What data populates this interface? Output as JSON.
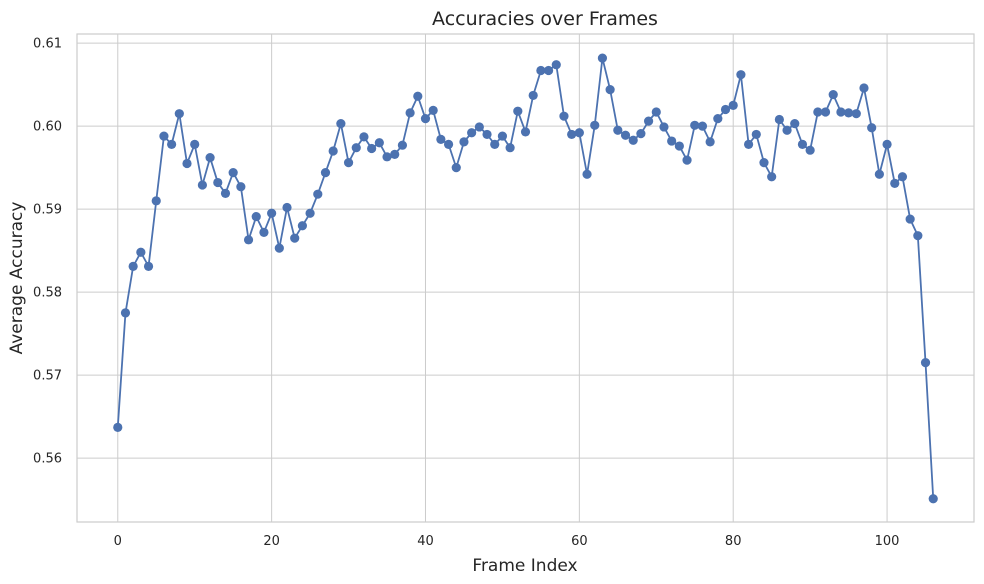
{
  "chart_data": {
    "type": "line",
    "title": "Accuracies over Frames",
    "xlabel": "Frame Index",
    "ylabel": "Average Accuracy",
    "xlim": [
      -5.3,
      111.3
    ],
    "ylim": [
      0.5523,
      0.6111
    ],
    "xticks": [
      0,
      20,
      40,
      60,
      80,
      100
    ],
    "yticks": [
      0.56,
      0.57,
      0.58,
      0.59,
      0.6,
      0.61
    ],
    "ytick_labels": [
      "0.56",
      "0.57",
      "0.58",
      "0.59",
      "0.60",
      "0.61"
    ],
    "grid": true,
    "marker": "circle",
    "color": "#4c72b0",
    "series": [
      {
        "x": [
          0,
          1,
          2,
          3,
          4,
          5,
          6,
          7,
          8,
          9,
          10,
          11,
          12,
          13,
          14,
          15,
          16,
          17,
          18,
          19,
          20,
          21,
          22,
          23,
          24,
          25,
          26,
          27,
          28,
          29,
          30,
          31,
          32,
          33,
          34,
          35,
          36,
          37,
          38,
          39,
          40,
          41,
          42,
          43,
          44,
          45,
          46,
          47,
          48,
          49,
          50,
          51,
          52,
          53,
          54,
          55,
          56,
          57,
          58,
          59,
          60,
          61,
          62,
          63,
          64,
          65,
          66,
          67,
          68,
          69,
          70,
          71,
          72,
          73,
          74,
          75,
          76,
          77,
          78,
          79,
          80,
          81,
          82,
          83,
          84,
          85,
          86,
          87,
          88,
          89,
          90,
          91,
          92,
          93,
          94,
          95,
          96,
          97,
          98,
          99,
          100,
          101,
          102,
          103,
          104,
          105,
          106
        ],
        "y": [
          0.5637,
          0.5775,
          0.5831,
          0.5848,
          0.5831,
          0.591,
          0.5988,
          0.5978,
          0.6015,
          0.5955,
          0.5978,
          0.5929,
          0.5962,
          0.5932,
          0.5919,
          0.5944,
          0.5927,
          0.5863,
          0.5891,
          0.5872,
          0.5895,
          0.5853,
          0.5902,
          0.5865,
          0.588,
          0.5895,
          0.5918,
          0.5944,
          0.597,
          0.6003,
          0.5956,
          0.5974,
          0.5987,
          0.5973,
          0.598,
          0.5963,
          0.5966,
          0.5977,
          0.6016,
          0.6036,
          0.6009,
          0.6019,
          0.5984,
          0.5978,
          0.595,
          0.5981,
          0.5992,
          0.5999,
          0.599,
          0.5978,
          0.5988,
          0.5974,
          0.6018,
          0.5993,
          0.6037,
          0.6067,
          0.6067,
          0.6074,
          0.6012,
          0.599,
          0.5992,
          0.5942,
          0.6001,
          0.6082,
          0.6044,
          0.5995,
          0.5989,
          0.5983,
          0.5991,
          0.6006,
          0.6017,
          0.5999,
          0.5982,
          0.5976,
          0.5959,
          0.6001,
          0.6,
          0.5981,
          0.6009,
          0.602,
          0.6025,
          0.6062,
          0.5978,
          0.599,
          0.5956,
          0.5939,
          0.6008,
          0.5995,
          0.6003,
          0.5978,
          0.5971,
          0.6017,
          0.6017,
          0.6038,
          0.6017,
          0.6016,
          0.6015,
          0.6046,
          0.5998,
          0.5942,
          0.5978,
          0.5931,
          0.5939,
          0.5888,
          0.5868,
          0.5715,
          0.5551
        ]
      }
    ]
  }
}
